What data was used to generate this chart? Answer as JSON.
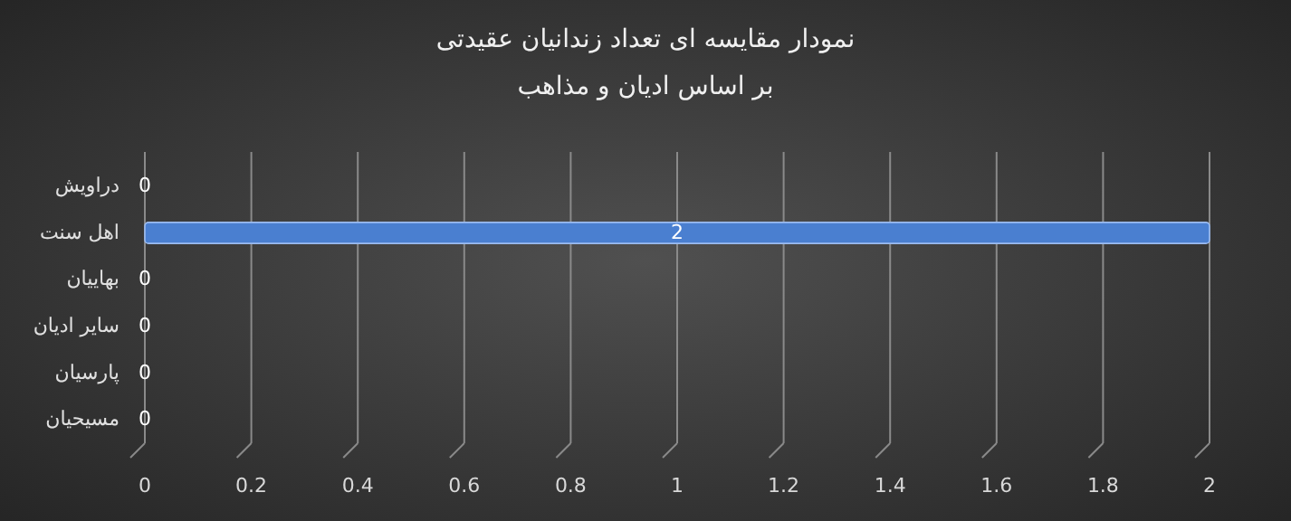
{
  "chart_data": {
    "type": "bar",
    "orientation": "horizontal",
    "title": "نمودار مقایسه ای تعداد زندانیان عقیدتی",
    "subtitle": "بر اساس ادیان و مذاهب",
    "categories": [
      "دراویش",
      "اهل سنت",
      "بهاییان",
      "سایر ادیان",
      "پارسیان",
      "مسیحیان"
    ],
    "series": [
      {
        "color": "#4a7fd0",
        "values": [
          0,
          2,
          0,
          0,
          0,
          0
        ]
      }
    ],
    "xlim": [
      0,
      2
    ],
    "xticks": [
      0,
      0.2,
      0.4,
      0.6,
      0.8,
      1,
      1.2,
      1.4,
      1.6,
      1.8,
      2
    ],
    "grid": "x",
    "data_labels": true
  }
}
